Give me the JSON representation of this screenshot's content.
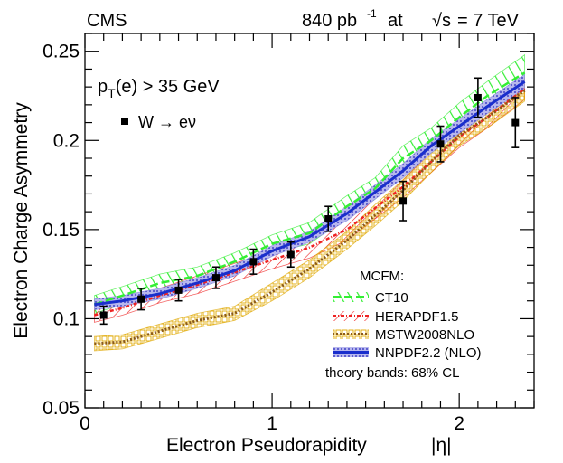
{
  "header": {
    "experiment": "CMS",
    "lumi_value": "840 pb",
    "lumi_exp": "-1",
    "at": "at",
    "energy_sym": "√s",
    "energy_value": "= 7 TeV"
  },
  "annotation": {
    "cut_p": "p",
    "cut_sub": "T",
    "cut_rest": "(e) > 35 GeV",
    "data_label": "W → eν"
  },
  "legend": {
    "title": "MCFM:",
    "entries": [
      "CT10",
      "HERAPDF1.5",
      "MSTW2008NLO",
      "NNPDF2.2 (NLO)"
    ],
    "footer": "theory bands: 68% CL"
  },
  "colors": {
    "ct10": "#33ee33",
    "hera": "#ee2222",
    "mstw": "#e0a800",
    "mstw_line": "#8b5a1a",
    "nnpdf_band": "#8888dd",
    "nnpdf_line": "#1a2fcc",
    "data": "#000000"
  },
  "chart_data": {
    "type": "line",
    "title": "",
    "xlabel": "Electron Pseudorapidity",
    "xlabel_suffix": "|η|",
    "ylabel": "Electron Charge Asymmetry",
    "xlim": [
      0,
      2.4
    ],
    "ylim": [
      0.05,
      0.26
    ],
    "x_ticks": [
      0,
      1,
      2
    ],
    "x_tick_labels": [
      "0",
      "1",
      "2"
    ],
    "y_ticks": [
      0.05,
      0.1,
      0.15,
      0.2,
      0.25
    ],
    "y_tick_labels": [
      "0.05",
      "0.1",
      "0.15",
      "0.2",
      "0.25"
    ],
    "data_points": {
      "name": "W → eν",
      "x": [
        0.1,
        0.3,
        0.5,
        0.7,
        0.9,
        1.1,
        1.3,
        1.7,
        1.9,
        2.1,
        2.3
      ],
      "y": [
        0.102,
        0.111,
        0.116,
        0.123,
        0.132,
        0.136,
        0.156,
        0.166,
        0.198,
        0.224,
        0.21
      ],
      "err": [
        0.005,
        0.006,
        0.006,
        0.006,
        0.007,
        0.007,
        0.007,
        0.011,
        0.01,
        0.011,
        0.014
      ]
    },
    "series": [
      {
        "name": "CT10",
        "x": [
          0.05,
          0.2,
          0.4,
          0.6,
          0.8,
          1.0,
          1.2,
          1.4,
          1.55,
          1.7,
          1.85,
          2.0,
          2.15,
          2.35
        ],
        "values": [
          0.108,
          0.113,
          0.12,
          0.124,
          0.132,
          0.142,
          0.148,
          0.163,
          0.173,
          0.19,
          0.2,
          0.213,
          0.225,
          0.238
        ],
        "half_width": [
          0.005,
          0.005,
          0.005,
          0.005,
          0.005,
          0.005,
          0.006,
          0.006,
          0.006,
          0.007,
          0.007,
          0.008,
          0.008,
          0.01
        ]
      },
      {
        "name": "HERAPDF1.5",
        "x": [
          0.05,
          0.2,
          0.4,
          0.6,
          0.8,
          1.0,
          1.2,
          1.4,
          1.55,
          1.7,
          1.85,
          2.0,
          2.15,
          2.35
        ],
        "values": [
          0.102,
          0.106,
          0.113,
          0.119,
          0.126,
          0.133,
          0.14,
          0.15,
          0.162,
          0.174,
          0.188,
          0.202,
          0.213,
          0.229
        ],
        "half_width": [
          0.004,
          0.004,
          0.004,
          0.005,
          0.005,
          0.005,
          0.006,
          0.006,
          0.006,
          0.006,
          0.006,
          0.006,
          0.006,
          0.006
        ]
      },
      {
        "name": "MSTW2008NLO",
        "x": [
          0.05,
          0.2,
          0.4,
          0.6,
          0.8,
          1.0,
          1.2,
          1.4,
          1.55,
          1.7,
          1.85,
          2.0,
          2.15,
          2.35
        ],
        "values": [
          0.086,
          0.087,
          0.093,
          0.099,
          0.103,
          0.115,
          0.128,
          0.144,
          0.158,
          0.172,
          0.188,
          0.203,
          0.213,
          0.228
        ],
        "half_width": [
          0.004,
          0.004,
          0.004,
          0.004,
          0.004,
          0.005,
          0.005,
          0.005,
          0.006,
          0.006,
          0.006,
          0.006,
          0.006,
          0.006
        ]
      },
      {
        "name": "NNPDF2.2 (NLO)",
        "x": [
          0.05,
          0.2,
          0.4,
          0.6,
          0.8,
          1.0,
          1.2,
          1.4,
          1.55,
          1.7,
          1.85,
          2.0,
          2.15,
          2.35
        ],
        "values": [
          0.108,
          0.11,
          0.114,
          0.12,
          0.127,
          0.138,
          0.146,
          0.159,
          0.171,
          0.183,
          0.197,
          0.208,
          0.219,
          0.233
        ],
        "half_width": [
          0.003,
          0.003,
          0.003,
          0.003,
          0.003,
          0.003,
          0.003,
          0.004,
          0.004,
          0.004,
          0.004,
          0.004,
          0.004,
          0.004
        ]
      }
    ]
  }
}
